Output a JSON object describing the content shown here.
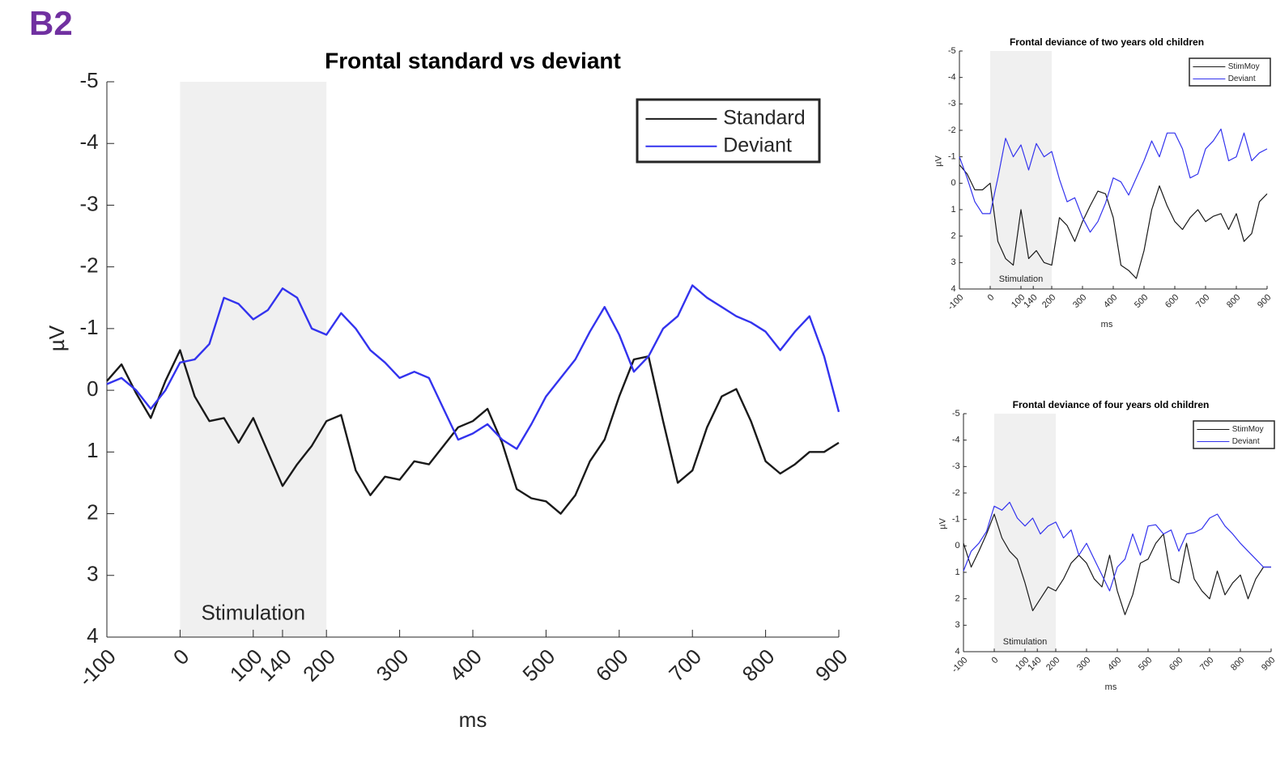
{
  "panel_label": "B2",
  "chart_data": [
    {
      "type": "line",
      "title": "Frontal standard vs deviant",
      "xlabel": "ms",
      "ylabel": "µV",
      "xlim": [
        -100,
        900
      ],
      "xticks": [
        -100,
        0,
        100,
        140,
        200,
        300,
        400,
        500,
        600,
        700,
        800,
        900
      ],
      "ylim": [
        -5,
        4
      ],
      "yticks": [
        -5,
        -4,
        -3,
        -2,
        -1,
        0,
        1,
        2,
        3,
        4
      ],
      "y_reversed": true,
      "legend": "upper right",
      "shade": {
        "from": 0,
        "to": 200,
        "label": "Stimulation",
        "color": "#f0f0f0"
      },
      "x": [
        -100,
        -80,
        -60,
        -40,
        -20,
        0,
        20,
        40,
        60,
        80,
        100,
        120,
        140,
        160,
        180,
        200,
        220,
        240,
        260,
        280,
        300,
        320,
        340,
        360,
        380,
        400,
        420,
        440,
        460,
        480,
        500,
        520,
        540,
        560,
        580,
        600,
        620,
        640,
        660,
        680,
        700,
        720,
        740,
        760,
        780,
        800,
        820,
        840,
        860,
        880,
        900
      ],
      "series": [
        {
          "name": "Standard",
          "color": "#1a1a1a",
          "values": [
            -0.15,
            -0.42,
            0.05,
            0.45,
            -0.15,
            -0.65,
            0.1,
            0.5,
            0.45,
            0.85,
            0.45,
            1.0,
            1.55,
            1.2,
            0.9,
            0.5,
            0.4,
            1.3,
            1.7,
            1.4,
            1.45,
            1.15,
            1.2,
            0.9,
            0.6,
            0.5,
            0.3,
            0.85,
            1.6,
            1.75,
            1.8,
            2.0,
            1.7,
            1.15,
            0.8,
            0.1,
            -0.5,
            -0.55,
            0.5,
            1.5,
            1.3,
            0.6,
            0.1,
            -0.02,
            0.5,
            1.15,
            1.35,
            1.2,
            1.0,
            1.0,
            0.85
          ]
        },
        {
          "name": "Deviant",
          "color": "#3333ee",
          "values": [
            -0.1,
            -0.2,
            0,
            0.3,
            0,
            -0.45,
            -0.5,
            -0.75,
            -1.5,
            -1.4,
            -1.15,
            -1.3,
            -1.65,
            -1.5,
            -1.0,
            -0.9,
            -1.25,
            -1.0,
            -0.65,
            -0.45,
            -0.2,
            -0.3,
            -0.2,
            0.3,
            0.8,
            0.7,
            0.55,
            0.8,
            0.95,
            0.55,
            0.1,
            -0.2,
            -0.5,
            -0.95,
            -1.35,
            -0.9,
            -0.3,
            -0.55,
            -1.0,
            -1.2,
            -1.7,
            -1.5,
            -1.35,
            -1.2,
            -1.1,
            -0.95,
            -0.65,
            -0.95,
            -1.2,
            -0.55,
            0.35
          ]
        }
      ]
    },
    {
      "type": "line",
      "title": "Frontal deviance of two years old children",
      "xlabel": "ms",
      "ylabel": "µV",
      "xlim": [
        -100,
        900
      ],
      "xticks": [
        -100,
        0,
        100,
        140,
        200,
        300,
        400,
        500,
        600,
        700,
        800,
        900
      ],
      "ylim": [
        -5,
        4
      ],
      "yticks": [
        -5,
        -4,
        -3,
        -2,
        -1,
        0,
        1,
        2,
        3,
        4
      ],
      "y_reversed": true,
      "legend": "upper right",
      "shade": {
        "from": 0,
        "to": 200,
        "label": "Stimulation",
        "color": "#f0f0f0"
      },
      "x": [
        -100,
        -75,
        -50,
        -25,
        0,
        25,
        50,
        75,
        100,
        125,
        150,
        175,
        200,
        225,
        250,
        275,
        300,
        325,
        350,
        375,
        400,
        425,
        450,
        475,
        500,
        525,
        550,
        575,
        600,
        625,
        650,
        675,
        700,
        725,
        750,
        775,
        800,
        825,
        850,
        875,
        900
      ],
      "series": [
        {
          "name": "StimMoy",
          "color": "#1a1a1a",
          "values": [
            -0.7,
            -0.35,
            0.25,
            0.25,
            0,
            2.2,
            2.85,
            3.1,
            1.0,
            2.85,
            2.55,
            3.0,
            3.1,
            1.3,
            1.6,
            2.2,
            1.45,
            0.85,
            0.3,
            0.4,
            1.3,
            3.1,
            3.3,
            3.6,
            2.55,
            1.0,
            0.1,
            0.85,
            1.45,
            1.75,
            1.3,
            1.0,
            1.45,
            1.25,
            1.15,
            1.75,
            1.15,
            2.2,
            1.9,
            0.7,
            0.4
          ]
        },
        {
          "name": "Deviant",
          "color": "#3333ee",
          "values": [
            -1.0,
            -0.2,
            0.7,
            1.15,
            1.15,
            -0.2,
            -1.7,
            -1.0,
            -1.45,
            -0.5,
            -1.5,
            -1.0,
            -1.2,
            -0.15,
            0.7,
            0.55,
            1.3,
            1.85,
            1.45,
            0.75,
            -0.2,
            -0.05,
            0.45,
            -0.2,
            -0.85,
            -1.6,
            -1.0,
            -1.9,
            -1.9,
            -1.3,
            -0.2,
            -0.35,
            -1.3,
            -1.6,
            -2.05,
            -0.85,
            -1.0,
            -1.9,
            -0.85,
            -1.15,
            -1.3
          ]
        }
      ]
    },
    {
      "type": "line",
      "title": "Frontal deviance of four years old children",
      "xlabel": "ms",
      "ylabel": "µV",
      "xlim": [
        -100,
        900
      ],
      "xticks": [
        -100,
        0,
        100,
        140,
        200,
        300,
        400,
        500,
        600,
        700,
        800,
        900
      ],
      "ylim": [
        -5,
        4
      ],
      "yticks": [
        -5,
        -4,
        -3,
        -2,
        -1,
        0,
        1,
        2,
        3,
        4
      ],
      "y_reversed": true,
      "legend": "upper right",
      "shade": {
        "from": 0,
        "to": 200,
        "label": "Stimulation",
        "color": "#f0f0f0"
      },
      "x": [
        -100,
        -75,
        -50,
        -25,
        0,
        25,
        50,
        75,
        100,
        125,
        150,
        175,
        200,
        225,
        250,
        275,
        300,
        325,
        350,
        375,
        400,
        425,
        450,
        475,
        500,
        525,
        550,
        575,
        600,
        625,
        650,
        675,
        700,
        725,
        750,
        775,
        800,
        825,
        850,
        875,
        900
      ],
      "series": [
        {
          "name": "StimMoy",
          "color": "#1a1a1a",
          "values": [
            -0.1,
            0.8,
            0.2,
            -0.45,
            -1.2,
            -0.3,
            0.2,
            0.5,
            1.4,
            2.45,
            2.0,
            1.55,
            1.7,
            1.25,
            0.65,
            0.35,
            0.65,
            1.25,
            1.55,
            0.35,
            1.7,
            2.6,
            1.85,
            0.65,
            0.5,
            -0.1,
            -0.45,
            1.25,
            1.4,
            -0.1,
            1.25,
            1.7,
            2.0,
            0.95,
            1.85,
            1.4,
            1.1,
            2.0,
            1.25,
            0.8,
            0.8
          ]
        },
        {
          "name": "Deviant",
          "color": "#3333ee",
          "values": [
            0.95,
            0.2,
            -0.1,
            -0.55,
            -1.5,
            -1.35,
            -1.65,
            -1.05,
            -0.75,
            -1.05,
            -0.45,
            -0.75,
            -0.9,
            -0.3,
            -0.6,
            0.35,
            -0.1,
            0.5,
            1.1,
            1.7,
            0.8,
            0.5,
            -0.45,
            0.35,
            -0.75,
            -0.8,
            -0.45,
            -0.6,
            0.2,
            -0.45,
            -0.5,
            -0.65,
            -1.05,
            -1.2,
            -0.75,
            -0.45,
            -0.1,
            0.2,
            0.5,
            0.8,
            0.8
          ]
        }
      ]
    }
  ]
}
